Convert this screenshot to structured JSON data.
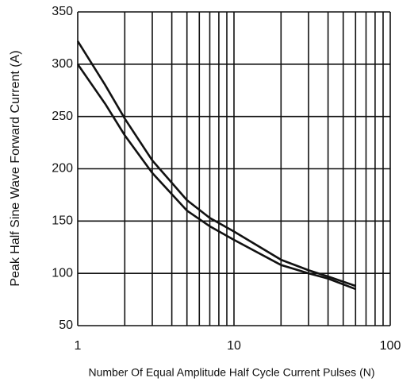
{
  "chart_data": {
    "type": "line",
    "x_label": "Number Of Equal Amplitude Half Cycle Current Pulses (N)",
    "y_label": "Peak Half Sine Wave Forward Current (A)",
    "x": [
      1,
      1.5,
      2,
      3,
      5,
      7,
      10,
      20,
      30,
      40,
      60
    ],
    "series": [
      {
        "color": "#111111",
        "values": [
          322,
          280,
          248,
          208,
          170,
          153,
          140,
          113,
          103,
          97,
          88
        ]
      },
      {
        "color": "#111111",
        "values": [
          300,
          262,
          232,
          196,
          160,
          145,
          132,
          108,
          100,
          95,
          85
        ]
      }
    ],
    "xlog": true,
    "xlim": [
      1,
      100
    ],
    "xticks": [
      1,
      10,
      100
    ],
    "xminor_ticks": [
      2,
      3,
      4,
      5,
      6,
      7,
      8,
      9,
      20,
      30,
      40,
      50,
      60,
      70,
      80,
      90
    ],
    "ylim": [
      50,
      350
    ],
    "yticks": [
      50,
      100,
      150,
      200,
      250,
      300,
      350
    ],
    "grid": true
  }
}
